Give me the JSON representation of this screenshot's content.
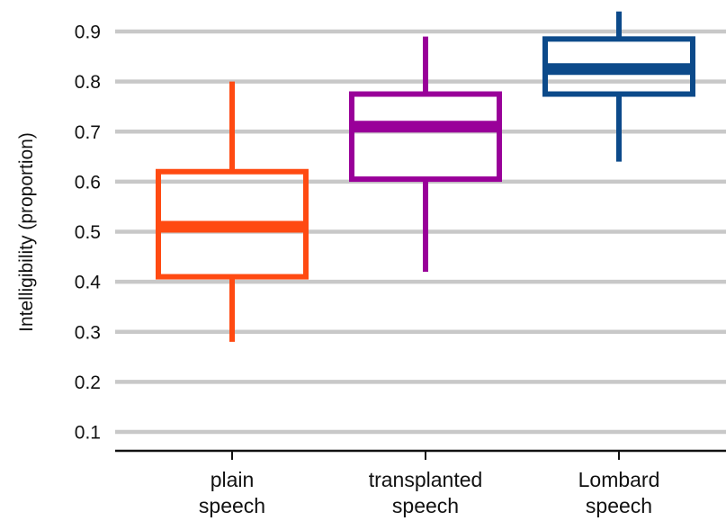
{
  "chart_data": {
    "type": "box",
    "title": "",
    "xlabel": "",
    "ylabel": "Intelligibility (proportion)",
    "ylim": [
      0.06,
      0.94
    ],
    "yticks": [
      "0.1",
      "0.2",
      "0.3",
      "0.4",
      "0.5",
      "0.6",
      "0.7",
      "0.8",
      "0.9"
    ],
    "grid": true,
    "legend": "none",
    "categories": [
      {
        "line1": "plain",
        "line2": "speech"
      },
      {
        "line1": "transplanted",
        "line2": "speech"
      },
      {
        "line1": "Lombard",
        "line2": "speech"
      }
    ],
    "boxes": [
      {
        "min": 0.28,
        "q1": 0.41,
        "median": 0.51,
        "q3": 0.62,
        "max": 0.8,
        "color": "#ff4a12"
      },
      {
        "min": 0.42,
        "q1": 0.605,
        "median": 0.71,
        "q3": 0.775,
        "max": 0.89,
        "color": "#990099"
      },
      {
        "min": 0.64,
        "q1": 0.775,
        "median": 0.825,
        "q3": 0.885,
        "max": 0.94,
        "color": "#0c4a8a"
      }
    ],
    "grid_color": "#c8c8c8",
    "axis_color": "#111111"
  }
}
